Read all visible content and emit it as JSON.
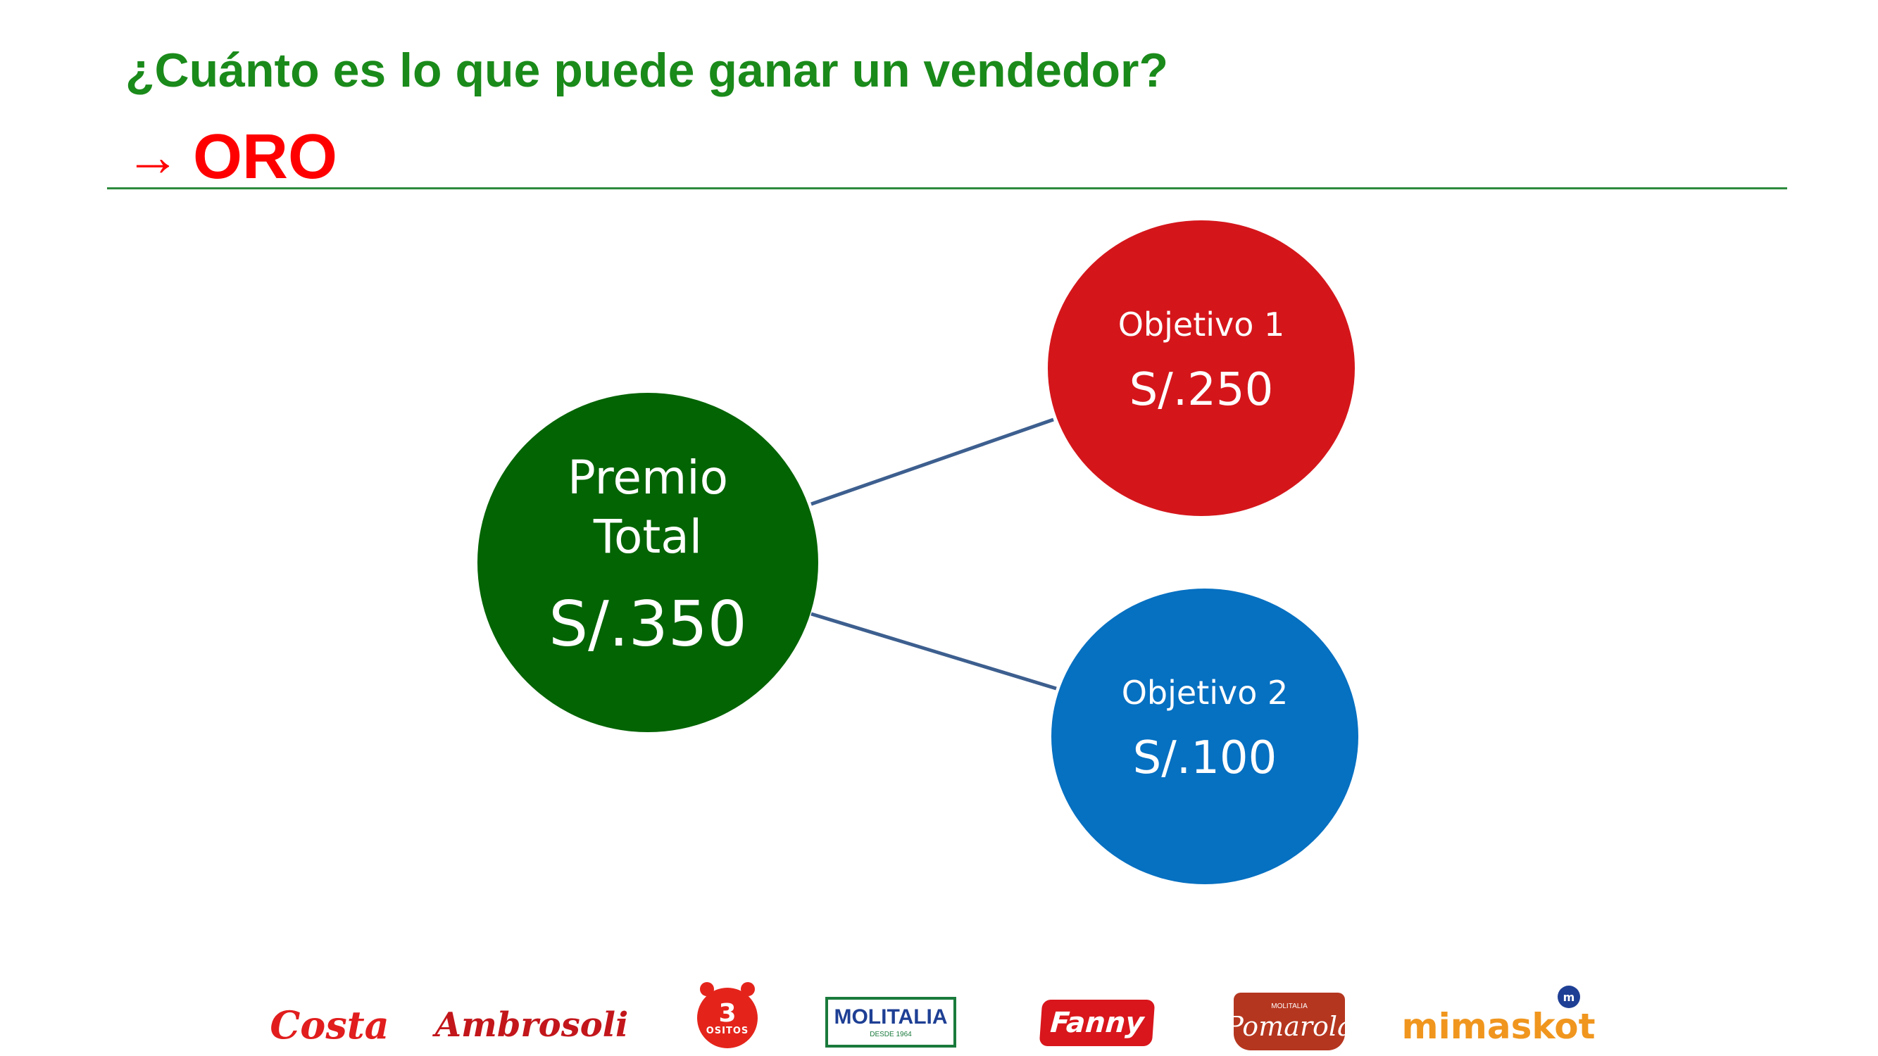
{
  "header": {
    "title": "¿Cuánto es lo que puede ganar un vendedor?",
    "subtitle_arrow": "→",
    "subtitle": "ORO"
  },
  "diagram": {
    "main": {
      "label": "Premio Total",
      "value": "S/.350"
    },
    "goals": [
      {
        "label": "Objetivo 1",
        "value": "S/.250"
      },
      {
        "label": "Objetivo 2",
        "value": "S/.100"
      }
    ]
  },
  "brands": {
    "costa": "Costa",
    "ambrosoli": "Ambrosoli",
    "ositos_number": "3",
    "ositos_word": "OSITOS",
    "molitalia": "MOLITALIA",
    "molitalia_since": "DESDE 1964",
    "fanny": "Fanny",
    "pomarola_small": "MOLITALIA",
    "pomarola": "Pomarola",
    "mimaskot": "mimaskot",
    "mimaskot_badge": "m"
  },
  "colors": {
    "title": "#1a8a1a",
    "subtitle": "#ff0000",
    "divider": "#2e8b3e",
    "main_node": "#036403",
    "goal_1": "#d4161b",
    "goal_2": "#0670c1",
    "connector": "#3d5f8f"
  }
}
